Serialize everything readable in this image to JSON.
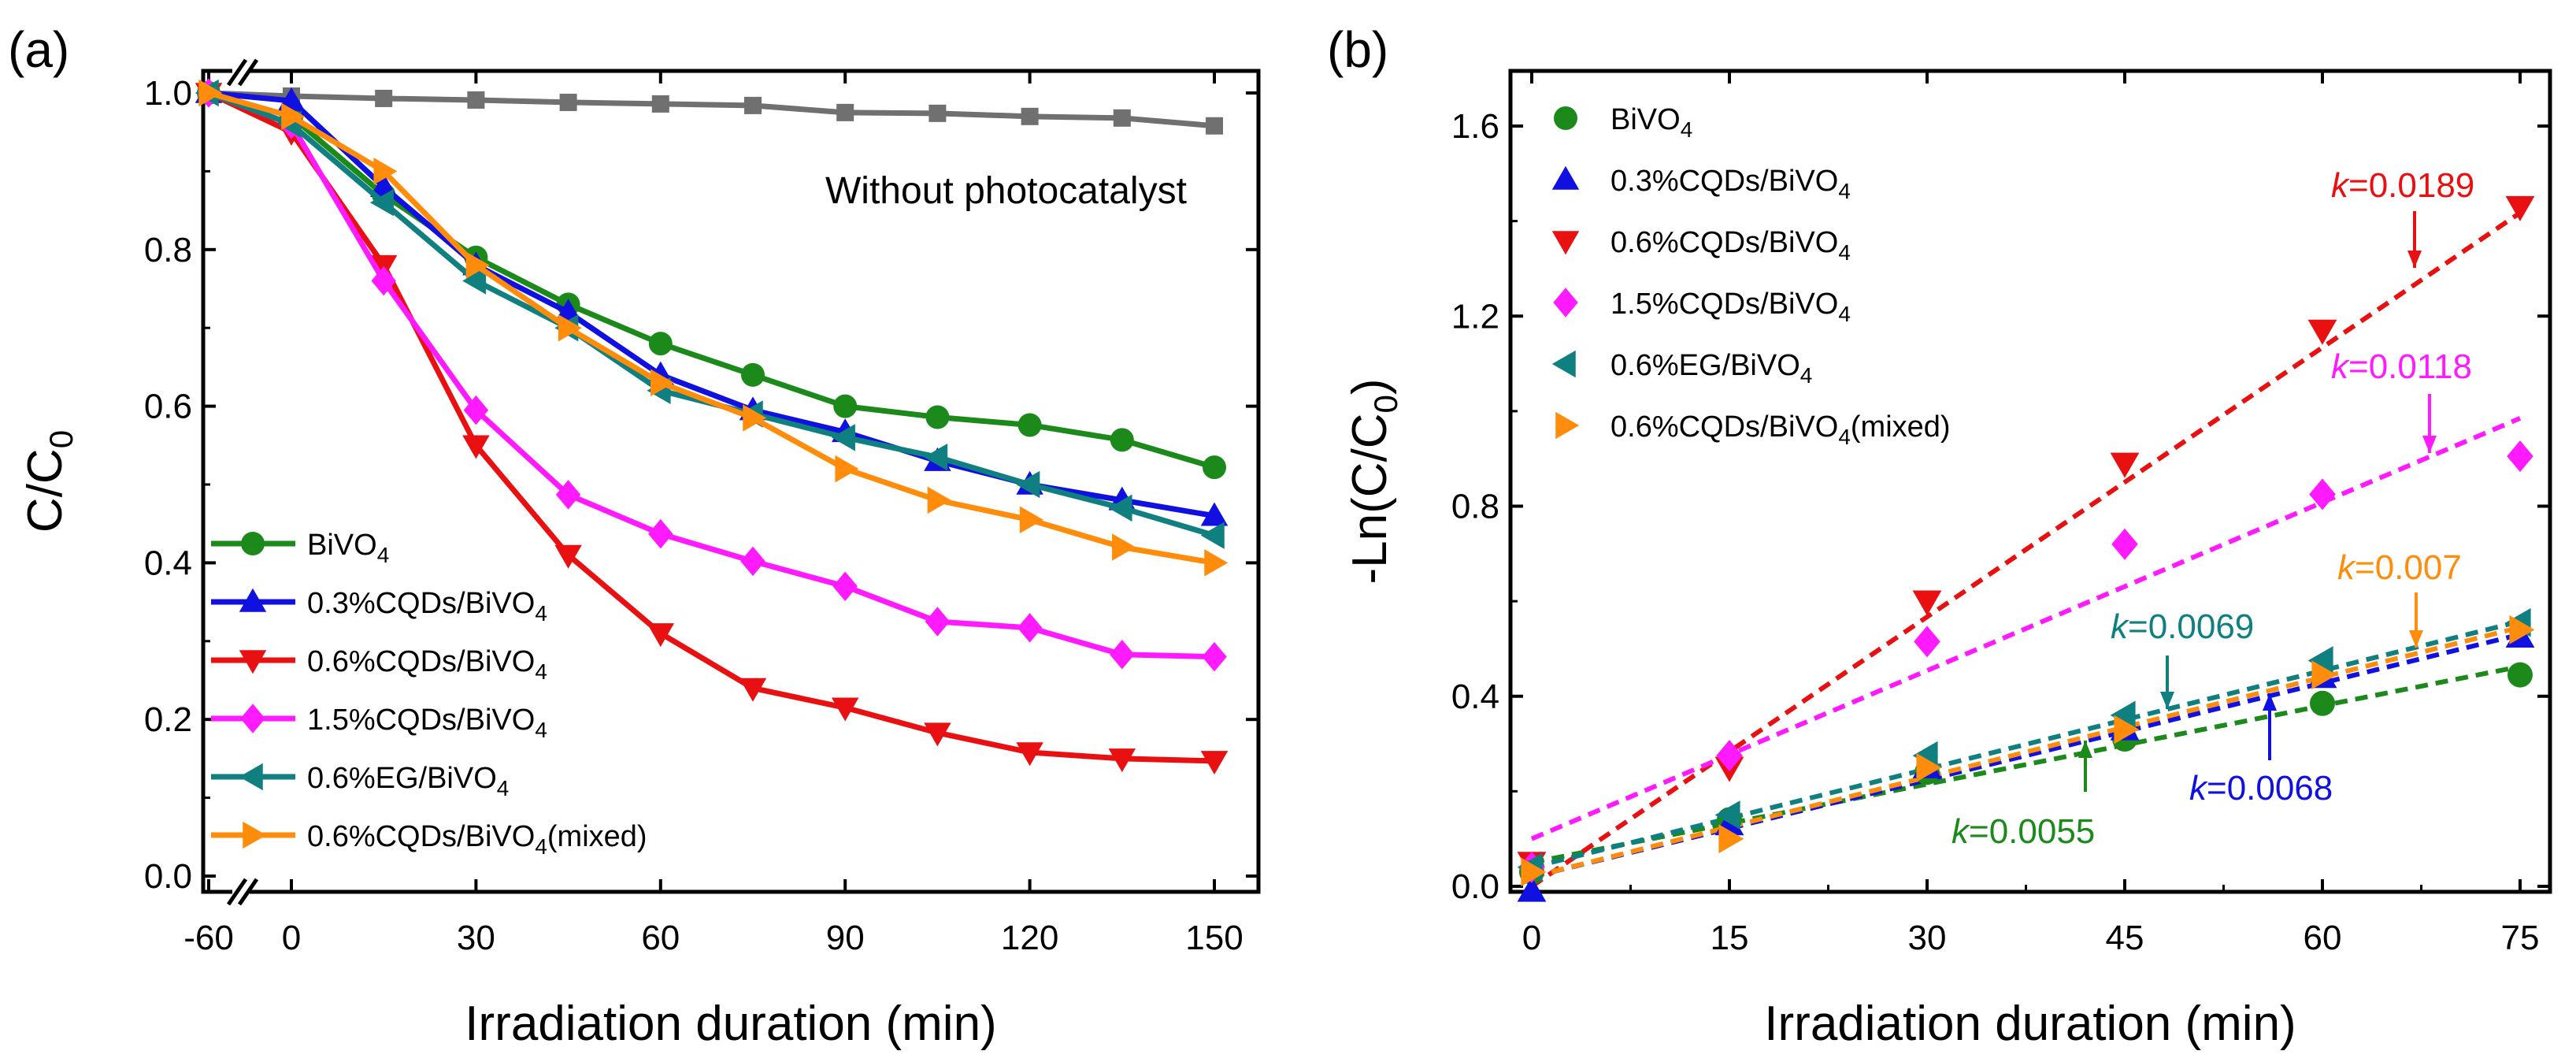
{
  "chart_data": [
    {
      "type": "line",
      "panel": "(a)",
      "xlabel": "Irradiation duration (min)",
      "ylabel_main": "C/C",
      "ylabel_sub": "0",
      "xlim": [
        -60,
        150
      ],
      "ylim": [
        0.0,
        1.0
      ],
      "xticks": [
        "-60",
        "0",
        "30",
        "60",
        "90",
        "120",
        "150"
      ],
      "yticks": [
        "0.0",
        "0.2",
        "0.4",
        "0.6",
        "0.8",
        "1.0"
      ],
      "axis_break": "between -60 and 0",
      "annotation": "Without photocatalyst",
      "legend_location": "lower-left",
      "x": [
        -60,
        0,
        15,
        30,
        45,
        60,
        75,
        90,
        105,
        120,
        135,
        150
      ],
      "series": [
        {
          "name": "Without photocatalyst",
          "color": "#707070",
          "marker": "square",
          "show_in_legend": false,
          "values": [
            1.0,
            0.996,
            0.993,
            0.991,
            0.988,
            0.986,
            0.984,
            0.975,
            0.974,
            0.97,
            0.968,
            0.958
          ]
        },
        {
          "name": "BiVO",
          "sub": "4",
          "suffix": "",
          "color": "#1b8a1b",
          "marker": "circle",
          "values": [
            1.0,
            0.97,
            0.87,
            0.79,
            0.73,
            0.68,
            0.64,
            0.6,
            0.586,
            0.576,
            0.557,
            0.522
          ]
        },
        {
          "name": "0.3%CQDs/BiVO",
          "sub": "4",
          "suffix": "",
          "color": "#1010e0",
          "marker": "triangle-up",
          "values": [
            1.0,
            0.99,
            0.88,
            0.78,
            0.72,
            0.64,
            0.595,
            0.567,
            0.53,
            0.5,
            0.48,
            0.46
          ]
        },
        {
          "name": "0.6%CQDs/BiVO",
          "sub": "4",
          "suffix": "",
          "color": "#e81010",
          "marker": "triangle-down",
          "values": [
            1.0,
            0.95,
            0.78,
            0.55,
            0.41,
            0.31,
            0.24,
            0.215,
            0.183,
            0.158,
            0.15,
            0.147
          ]
        },
        {
          "name": "1.5%CQDs/BiVO",
          "sub": "4",
          "suffix": "",
          "color": "#ff1aff",
          "marker": "diamond",
          "values": [
            1.0,
            0.96,
            0.76,
            0.595,
            0.487,
            0.437,
            0.402,
            0.37,
            0.325,
            0.317,
            0.283,
            0.28
          ]
        },
        {
          "name": "0.6%EG/BiVO",
          "sub": "4",
          "suffix": "",
          "color": "#0f7f80",
          "marker": "triangle-left",
          "values": [
            1.0,
            0.96,
            0.86,
            0.76,
            0.7,
            0.62,
            0.59,
            0.56,
            0.535,
            0.5,
            0.47,
            0.435
          ]
        },
        {
          "name": "0.6%CQDs/BiVO",
          "sub": "4",
          "suffix": "(mixed)",
          "color": "#ff8c0a",
          "marker": "triangle-right",
          "values": [
            1.0,
            0.97,
            0.9,
            0.78,
            0.7,
            0.63,
            0.585,
            0.52,
            0.48,
            0.455,
            0.42,
            0.4
          ]
        }
      ]
    },
    {
      "type": "scatter",
      "panel": "(b)",
      "xlabel": "Irradiation duration (min)",
      "ylabel_main": "-Ln(C/C",
      "ylabel_sub": "0",
      "ylabel_end": ")",
      "xlim": [
        -2,
        77
      ],
      "ylim": [
        -0.02,
        1.72
      ],
      "xticks": [
        "0",
        "15",
        "30",
        "45",
        "60",
        "75"
      ],
      "yticks": [
        "0.0",
        "0.4",
        "0.8",
        "1.2",
        "1.6"
      ],
      "legend_location": "upper-left",
      "x": [
        0,
        15,
        30,
        45,
        60,
        75
      ],
      "series": [
        {
          "name": "BiVO",
          "sub": "4",
          "suffix": "",
          "color": "#1b8a1b",
          "marker": "circle",
          "values": [
            0.03,
            0.14,
            0.24,
            0.31,
            0.385,
            0.445
          ],
          "fit": {
            "slope": 0.0055,
            "intercept": 0.05
          },
          "k_label": "0.0055"
        },
        {
          "name": "0.3%CQDs/BiVO",
          "sub": "4",
          "suffix": "",
          "color": "#1010e0",
          "marker": "triangle-up",
          "values": [
            -0.01,
            0.13,
            0.25,
            0.33,
            0.44,
            0.525
          ],
          "fit": {
            "slope": 0.0068,
            "intercept": 0.02
          },
          "k_label": "0.0068"
        },
        {
          "name": "0.6%CQDs/BiVO",
          "sub": "4",
          "suffix": "",
          "color": "#e81010",
          "marker": "triangle-down",
          "values": [
            0.05,
            0.25,
            0.6,
            0.89,
            1.17,
            1.43
          ],
          "fit": {
            "slope": 0.0189,
            "intercept": 0.0
          },
          "k_label": "0.0189"
        },
        {
          "name": "1.5%CQDs/BiVO",
          "sub": "4",
          "suffix": "",
          "color": "#ff1aff",
          "marker": "diamond",
          "values": [
            0.04,
            0.275,
            0.515,
            0.72,
            0.825,
            0.905
          ],
          "fit": {
            "slope": 0.0118,
            "intercept": 0.1
          },
          "k_label": "0.0118"
        },
        {
          "name": "0.6%EG/BiVO",
          "sub": "4",
          "suffix": "",
          "color": "#0f7f80",
          "marker": "triangle-left",
          "values": [
            0.04,
            0.15,
            0.275,
            0.36,
            0.475,
            0.555
          ],
          "fit": {
            "slope": 0.0069,
            "intercept": 0.04
          },
          "k_label": "0.0069"
        },
        {
          "name": "0.6%CQDs/BiVO",
          "sub": "4",
          "suffix": "(mixed)",
          "color": "#ff8c0a",
          "marker": "triangle-right",
          "values": [
            0.03,
            0.1,
            0.25,
            0.33,
            0.445,
            0.54
          ],
          "fit": {
            "slope": 0.007,
            "intercept": 0.02
          },
          "k_label": "0.007"
        }
      ],
      "k_prefix": "k",
      "k_equals": "="
    }
  ]
}
